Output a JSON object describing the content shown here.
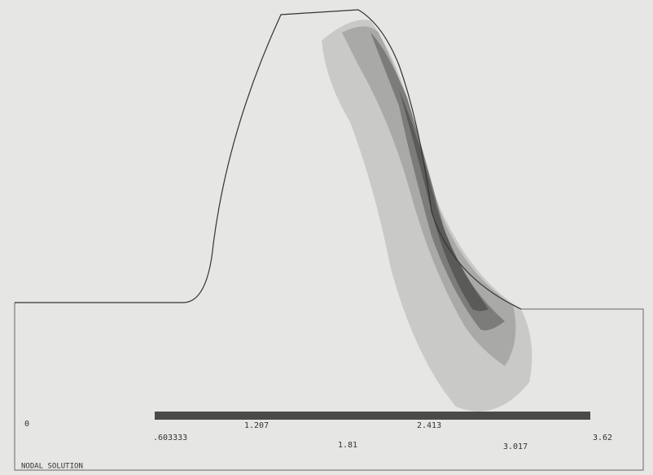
{
  "legend": {
    "labels": [
      "0",
      ".603333",
      "1.207",
      "1.81",
      "2.413",
      "3.017",
      "3.62"
    ]
  },
  "caption": "NODAL SOLUTION"
}
